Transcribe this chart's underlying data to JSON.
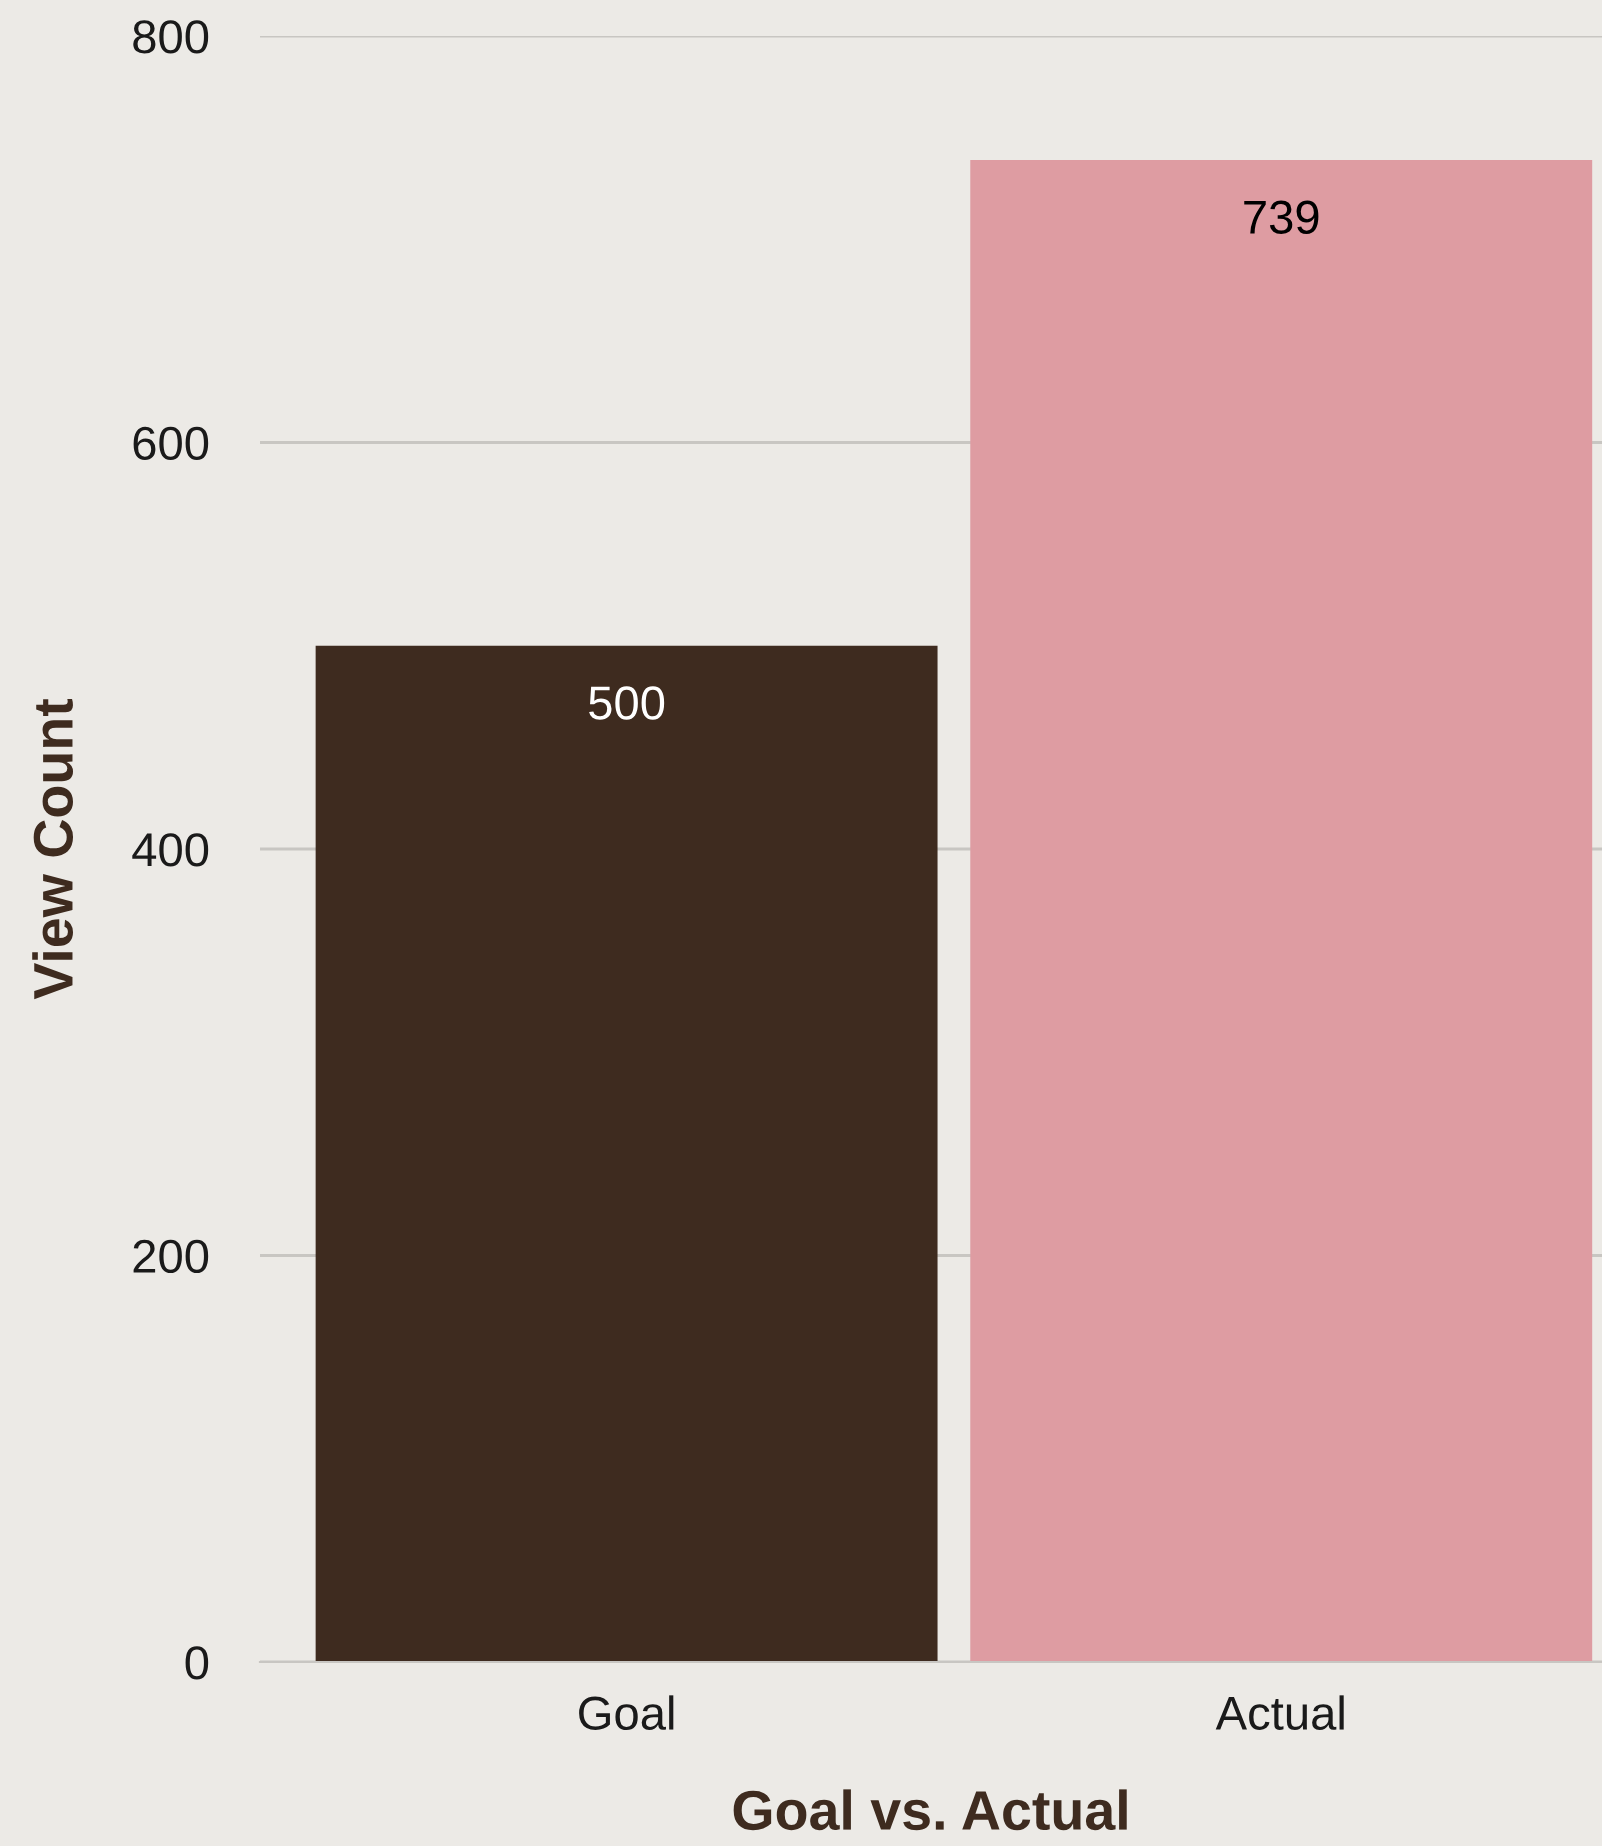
{
  "chart_data": {
    "type": "bar",
    "xlabel": "Goal vs. Actual",
    "ylabel": "View Count",
    "categories": [
      "Goal",
      "Actual"
    ],
    "values": [
      500,
      739
    ],
    "colors": [
      "#3e2b1f",
      "#de9ca2"
    ],
    "ylim": [
      0,
      800
    ],
    "yticks": [
      0,
      200,
      400,
      600,
      800
    ],
    "grid": "y",
    "data_labels": true
  }
}
